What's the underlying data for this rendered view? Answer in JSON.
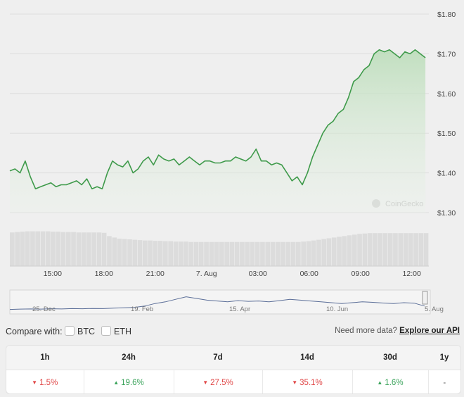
{
  "chart_data": {
    "type": "area",
    "title": "",
    "xlabel": "",
    "ylabel": "",
    "ylim": [
      1.3,
      1.8
    ],
    "y_ticks": [
      "$1.80",
      "$1.70",
      "$1.60",
      "$1.50",
      "$1.40",
      "$1.30"
    ],
    "y_tick_values": [
      1.8,
      1.7,
      1.6,
      1.5,
      1.4,
      1.3
    ],
    "x_ticks": [
      "15:00",
      "18:00",
      "21:00",
      "7. Aug",
      "03:00",
      "06:00",
      "09:00",
      "12:00"
    ],
    "x_tick_hours": [
      15,
      18,
      21,
      24,
      27,
      30,
      33,
      36
    ],
    "x_range_hours": [
      12.5,
      37.0
    ],
    "series": [
      {
        "hours": [
          12.5,
          12.8,
          13.1,
          13.4,
          13.7,
          14.0,
          14.3,
          14.6,
          14.9,
          15.2,
          15.5,
          15.8,
          16.1,
          16.4,
          16.7,
          17.0,
          17.3,
          17.6,
          17.9,
          18.2,
          18.5,
          18.8,
          19.1,
          19.4,
          19.7,
          20.0,
          20.3,
          20.6,
          20.9,
          21.2,
          21.5,
          21.8,
          22.1,
          22.4,
          22.7,
          23.0,
          23.3,
          23.6,
          23.9,
          24.2,
          24.5,
          24.8,
          25.1,
          25.4,
          25.7,
          26.0,
          26.3,
          26.6,
          26.9,
          27.2,
          27.5,
          27.8,
          28.1,
          28.4,
          28.7,
          29.0,
          29.3,
          29.6,
          29.9,
          30.2,
          30.5,
          30.8,
          31.1,
          31.4,
          31.7,
          32.0,
          32.3,
          32.6,
          32.9,
          33.2,
          33.5,
          33.8,
          34.1,
          34.4,
          34.7,
          35.0,
          35.3,
          35.6,
          35.9,
          36.2,
          36.5,
          36.8
        ],
        "values": [
          1.405,
          1.41,
          1.4,
          1.43,
          1.39,
          1.36,
          1.365,
          1.37,
          1.375,
          1.365,
          1.37,
          1.37,
          1.375,
          1.38,
          1.37,
          1.385,
          1.36,
          1.365,
          1.36,
          1.4,
          1.43,
          1.42,
          1.415,
          1.43,
          1.4,
          1.41,
          1.43,
          1.44,
          1.42,
          1.445,
          1.435,
          1.43,
          1.435,
          1.42,
          1.43,
          1.44,
          1.43,
          1.42,
          1.43,
          1.43,
          1.425,
          1.425,
          1.43,
          1.43,
          1.44,
          1.435,
          1.43,
          1.44,
          1.46,
          1.43,
          1.43,
          1.42,
          1.425,
          1.42,
          1.4,
          1.38,
          1.39,
          1.37,
          1.4,
          1.44,
          1.47,
          1.5,
          1.52,
          1.53,
          1.55,
          1.56,
          1.59,
          1.63,
          1.64,
          1.66,
          1.67,
          1.7,
          1.71,
          1.705,
          1.71,
          1.7,
          1.69,
          1.705,
          1.7,
          1.71,
          1.7,
          1.69
        ]
      }
    ],
    "volume_relative": [
      0.92,
      0.93,
      0.94,
      0.95,
      0.95,
      0.95,
      0.95,
      0.95,
      0.94,
      0.94,
      0.93,
      0.93,
      0.93,
      0.92,
      0.92,
      0.92,
      0.92,
      0.92,
      0.91,
      0.82,
      0.78,
      0.75,
      0.74,
      0.73,
      0.72,
      0.71,
      0.7,
      0.7,
      0.69,
      0.69,
      0.68,
      0.68,
      0.67,
      0.67,
      0.67,
      0.66,
      0.66,
      0.66,
      0.66,
      0.66,
      0.66,
      0.66,
      0.66,
      0.66,
      0.66,
      0.66,
      0.66,
      0.66,
      0.66,
      0.66,
      0.66,
      0.66,
      0.66,
      0.66,
      0.66,
      0.66,
      0.66,
      0.67,
      0.68,
      0.7,
      0.72,
      0.74,
      0.76,
      0.78,
      0.8,
      0.82,
      0.84,
      0.86,
      0.88,
      0.89,
      0.9,
      0.9,
      0.9,
      0.9,
      0.9,
      0.9,
      0.9,
      0.9,
      0.9,
      0.9,
      0.9,
      0.9
    ],
    "navigator": {
      "x_labels": [
        "25. Dec",
        "19. Feb",
        "15. Apr",
        "10. Jun",
        "5. Aug"
      ],
      "values": [
        0.1,
        0.12,
        0.13,
        0.12,
        0.14,
        0.13,
        0.15,
        0.14,
        0.16,
        0.15,
        0.18,
        0.2,
        0.22,
        0.3,
        0.45,
        0.55,
        0.7,
        0.85,
        0.75,
        0.65,
        0.6,
        0.55,
        0.62,
        0.58,
        0.6,
        0.55,
        0.62,
        0.7,
        0.65,
        0.6,
        0.55,
        0.5,
        0.45,
        0.5,
        0.55,
        0.52,
        0.48,
        0.45,
        0.5,
        0.47,
        0.3
      ]
    },
    "grid": true,
    "legend": "none",
    "line_color": "#3e9a4a",
    "watermark": "CoinGecko"
  },
  "compare": {
    "label": "Compare with:",
    "options": [
      "BTC",
      "ETH"
    ],
    "more_text": "Need more data?",
    "more_link": "Explore our API"
  },
  "performance": {
    "headers": [
      "1h",
      "24h",
      "7d",
      "14d",
      "30d",
      "1y"
    ],
    "values": [
      "1.5%",
      "19.6%",
      "27.5%",
      "35.1%",
      "1.6%",
      "-"
    ],
    "directions": [
      "down",
      "up",
      "down",
      "down",
      "up",
      "none"
    ]
  }
}
